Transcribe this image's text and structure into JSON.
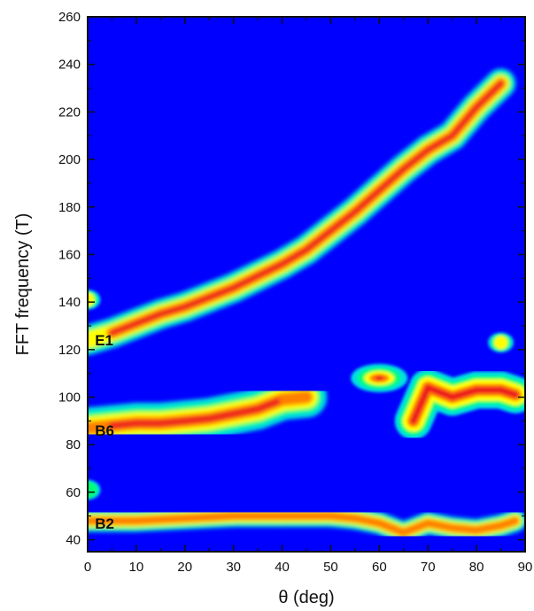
{
  "chart_data": {
    "type": "heatmap",
    "xlabel": "θ (deg)",
    "ylabel": "FFT frequency (T)",
    "xlim": [
      0,
      90
    ],
    "ylim": [
      35,
      260
    ],
    "x_ticks": [
      0,
      10,
      20,
      30,
      40,
      50,
      60,
      70,
      80,
      90
    ],
    "y_ticks": [
      40,
      60,
      80,
      100,
      120,
      140,
      160,
      180,
      200,
      220,
      240,
      260
    ],
    "grid": false,
    "legend": "none",
    "colormap": [
      "#0000ff",
      "#00e0e0",
      "#00ff70",
      "#ffff00",
      "#ff8000",
      "#ee1c1c"
    ],
    "background_color": "#0000ff",
    "band_labels": [
      {
        "label": "E1",
        "x": 1.5,
        "y": 124
      },
      {
        "label": "B6",
        "x": 1.5,
        "y": 86
      },
      {
        "label": "B2",
        "x": 1.5,
        "y": 47
      }
    ],
    "series": [
      {
        "name": "E1",
        "theta": [
          0,
          5,
          10,
          15,
          20,
          25,
          30,
          35,
          40,
          45,
          50,
          55,
          60,
          65,
          70,
          75,
          80,
          85
        ],
        "frequency": [
          124,
          127,
          131,
          135,
          138,
          142,
          146,
          151,
          156,
          162,
          170,
          178,
          187,
          196,
          204,
          210,
          222,
          232
        ],
        "peak_intensity": [
          0.55,
          0.9,
          0.93,
          0.94,
          0.95,
          0.95,
          0.96,
          0.96,
          0.97,
          0.97,
          0.98,
          0.98,
          0.99,
          0.99,
          1.0,
          1.0,
          1.0,
          0.95
        ]
      },
      {
        "name": "B6",
        "theta": [
          0,
          5,
          10,
          15,
          20,
          25,
          30,
          35,
          40,
          45
        ],
        "frequency": [
          87,
          88,
          89,
          89,
          90,
          91,
          93,
          95,
          99,
          100
        ],
        "peak_intensity": [
          0.8,
          0.9,
          0.9,
          0.9,
          0.9,
          0.9,
          0.9,
          0.9,
          0.92,
          0.85
        ]
      },
      {
        "name": "B2",
        "theta": [
          0,
          10,
          20,
          30,
          40,
          50,
          55,
          60,
          65,
          70,
          75,
          80,
          85,
          88
        ],
        "frequency": [
          48,
          48,
          49,
          50,
          50,
          50,
          49,
          47,
          43,
          47,
          45,
          44,
          46,
          48
        ],
        "peak_intensity": [
          0.75,
          0.82,
          0.85,
          0.85,
          0.85,
          0.85,
          0.85,
          0.8,
          0.85,
          0.92,
          0.85,
          0.82,
          0.88,
          0.8
        ]
      }
    ],
    "features": [
      {
        "name": "pocket-near-60deg",
        "theta": 60,
        "frequency": 108,
        "peak_intensity": 0.95
      },
      {
        "name": "branch-70-90deg",
        "theta": [
          67,
          70,
          75,
          80,
          85,
          88
        ],
        "frequency": [
          90,
          104,
          100,
          103,
          103,
          101
        ],
        "peak_intensity": 0.9
      },
      {
        "name": "spike-85deg",
        "theta": 85,
        "frequency": 123,
        "peak_intensity": 0.5
      },
      {
        "name": "spot-0deg-140T",
        "theta": 0,
        "frequency": 141,
        "peak_intensity": 0.5
      },
      {
        "name": "spot-0deg-60T",
        "theta": 0,
        "frequency": 61,
        "peak_intensity": 0.4
      }
    ]
  }
}
